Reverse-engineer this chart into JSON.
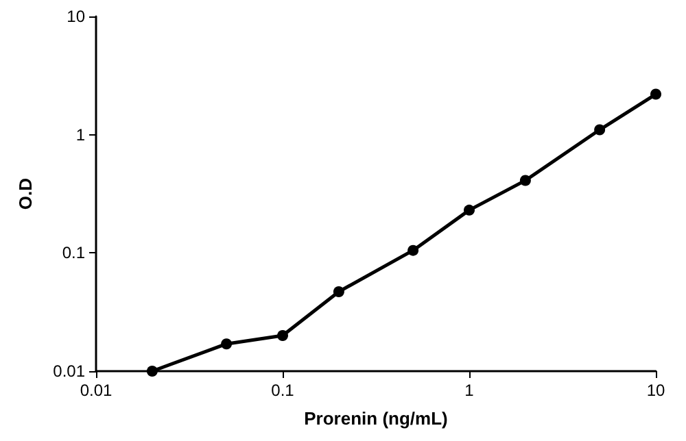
{
  "chart_data": {
    "type": "line",
    "xlabel": "Prorenin (ng/mL)",
    "ylabel": "O.D",
    "x": [
      0.02,
      0.05,
      0.1,
      0.2,
      0.5,
      1,
      2,
      5,
      10
    ],
    "series": [
      {
        "color": "#000000",
        "values": [
          0.01,
          0.017,
          0.02,
          0.047,
          0.105,
          0.23,
          0.41,
          1.1,
          2.2
        ]
      }
    ],
    "log": "xy",
    "xlim": [
      0.01,
      10
    ],
    "ylim": [
      0.01,
      10
    ],
    "xticks": [
      0.01,
      0.1,
      1,
      10
    ],
    "yticks": [
      0.01,
      0.1,
      1,
      10
    ],
    "grid": false,
    "marker": "circle",
    "line_style": "solid"
  }
}
